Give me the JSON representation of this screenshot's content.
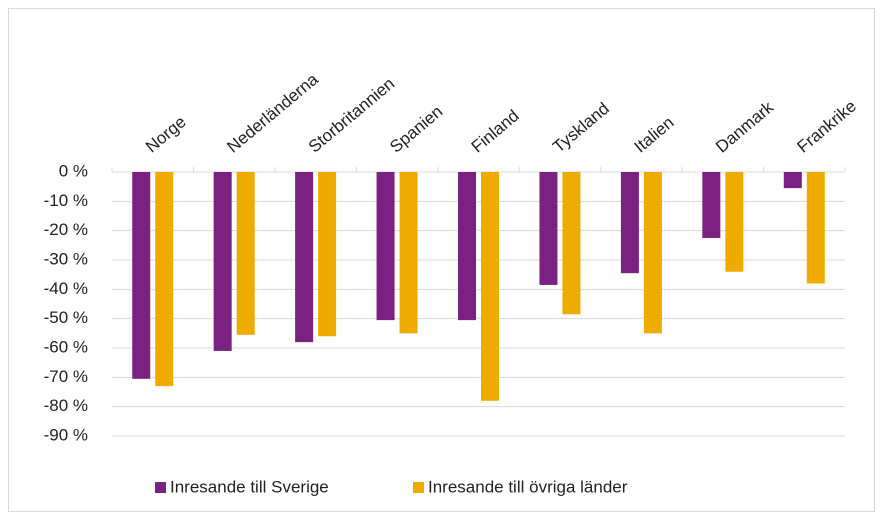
{
  "chart_data": {
    "type": "bar",
    "categories": [
      "Norge",
      "Nederländerna",
      "Storbritannien",
      "Spanien",
      "Finland",
      "Tyskland",
      "Italien",
      "Danmark",
      "Frankrike"
    ],
    "series": [
      {
        "name": "Inresande till Sverige",
        "color": "#7b2182",
        "values": [
          -70.5,
          -61,
          -58,
          -50.5,
          -50.5,
          -38.5,
          -34.5,
          -22.5,
          -5.5
        ]
      },
      {
        "name": "Inresande till övriga länder",
        "color": "#f0ab00",
        "values": [
          -73,
          -55.5,
          -56,
          -55,
          -78,
          -48.5,
          -55,
          -34,
          -38
        ]
      }
    ],
    "ylim": [
      -90,
      0
    ],
    "yticks": [
      {
        "value": 0,
        "label": "0 %"
      },
      {
        "value": -10,
        "label": "-10 %"
      },
      {
        "value": -20,
        "label": "-20 %"
      },
      {
        "value": -30,
        "label": "-30 %"
      },
      {
        "value": -40,
        "label": "-40 %"
      },
      {
        "value": -50,
        "label": "-50 %"
      },
      {
        "value": -60,
        "label": "-60 %"
      },
      {
        "value": -70,
        "label": "-70 %"
      },
      {
        "value": -80,
        "label": "-80 %"
      },
      {
        "value": -90,
        "label": "-90 %"
      }
    ],
    "grid": true,
    "legend": "bottom"
  }
}
